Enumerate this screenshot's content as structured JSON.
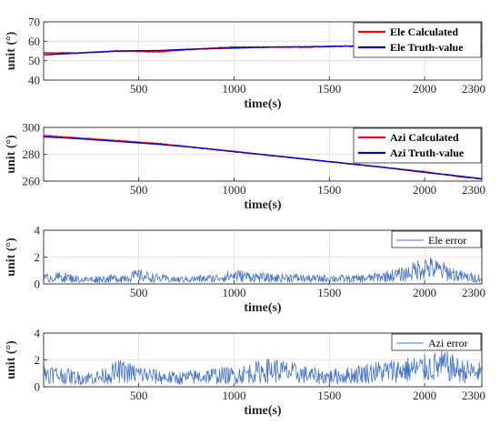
{
  "chart_data": [
    {
      "type": "line",
      "xlabel": "time(s)",
      "ylabel": "unit (°)",
      "xlim": [
        1,
        2300
      ],
      "ylim": [
        40,
        70
      ],
      "xticks": [
        500,
        1000,
        1500,
        2000,
        2300
      ],
      "yticks": [
        40,
        50,
        60,
        70
      ],
      "grid": true,
      "legend": "top-right",
      "series": [
        {
          "name": "Ele Calculated",
          "color": "#ff0000",
          "x": [
            1,
            200,
            400,
            600,
            800,
            1000,
            1200,
            1400,
            1600,
            1800,
            2000,
            2200,
            2300
          ],
          "values": [
            54,
            54,
            55,
            54.5,
            56,
            57,
            57,
            57,
            57.5,
            57,
            56.5,
            56.5,
            57
          ]
        },
        {
          "name": "Ele Truth-value",
          "color": "#0000cc",
          "x": [
            1,
            200,
            400,
            600,
            800,
            1000,
            1200,
            1400,
            1600,
            1800,
            2000,
            2200,
            2300
          ],
          "values": [
            53,
            54,
            55,
            55.2,
            56,
            56.5,
            57,
            57.2,
            57.5,
            57.5,
            57.5,
            57.3,
            57.2
          ]
        }
      ]
    },
    {
      "type": "line",
      "xlabel": "time(s)",
      "ylabel": "unit (°)",
      "xlim": [
        1,
        2300
      ],
      "ylim": [
        260,
        300
      ],
      "xticks": [
        500,
        1000,
        1500,
        2000,
        2300
      ],
      "yticks": [
        260,
        280,
        300
      ],
      "grid": true,
      "legend": "top-right",
      "series": [
        {
          "name": "Azi Calculated",
          "color": "#ff0000",
          "x": [
            1,
            200,
            400,
            600,
            800,
            1000,
            1200,
            1400,
            1600,
            1800,
            2000,
            2200,
            2300
          ],
          "values": [
            294,
            292,
            290,
            288,
            285,
            282,
            279,
            276,
            273,
            270,
            267,
            263,
            262
          ]
        },
        {
          "name": "Azi Truth-value",
          "color": "#0000cc",
          "x": [
            1,
            200,
            400,
            600,
            800,
            1000,
            1200,
            1400,
            1600,
            1800,
            2000,
            2200,
            2300
          ],
          "values": [
            293,
            291.5,
            289.5,
            287.5,
            285,
            282,
            279,
            276,
            273,
            270,
            266.5,
            263.5,
            261.5
          ]
        }
      ]
    },
    {
      "type": "line",
      "xlabel": "time(s)",
      "ylabel": "unit (°)",
      "xlim": [
        1,
        2300
      ],
      "ylim": [
        0,
        4
      ],
      "xticks": [
        500,
        1000,
        1500,
        2000,
        2300
      ],
      "yticks": [
        0,
        2,
        4
      ],
      "grid": true,
      "legend": "top-right",
      "series": [
        {
          "name": "Ele error",
          "color": "#4472c4",
          "x": [
            1,
            100,
            200,
            300,
            400,
            500,
            600,
            700,
            800,
            900,
            1000,
            1100,
            1200,
            1300,
            1400,
            1500,
            1600,
            1700,
            1800,
            1900,
            2000,
            2100,
            2200,
            2300
          ],
          "values": [
            0.4,
            0.5,
            0.3,
            0.35,
            0.4,
            0.6,
            0.4,
            0.3,
            0.35,
            0.4,
            0.6,
            0.5,
            0.4,
            0.45,
            0.35,
            0.4,
            0.35,
            0.4,
            0.55,
            0.7,
            1.2,
            0.9,
            0.5,
            0.4
          ]
        }
      ]
    },
    {
      "type": "line",
      "xlabel": "time(s)",
      "ylabel": "unit (°)",
      "xlim": [
        1,
        2300
      ],
      "ylim": [
        0,
        4
      ],
      "xticks": [
        500,
        1000,
        1500,
        2000,
        2300
      ],
      "yticks": [
        0,
        2,
        4
      ],
      "grid": true,
      "legend": "top-right",
      "series": [
        {
          "name": "Azi error",
          "color": "#4472c4",
          "x": [
            1,
            100,
            200,
            300,
            400,
            500,
            600,
            700,
            800,
            900,
            1000,
            1100,
            1200,
            1300,
            1400,
            1500,
            1600,
            1700,
            1800,
            1900,
            2000,
            2100,
            2200,
            2300
          ],
          "values": [
            1.0,
            0.8,
            0.6,
            0.7,
            1.1,
            0.9,
            0.7,
            0.6,
            0.7,
            0.8,
            0.8,
            1.0,
            1.2,
            1.0,
            0.8,
            0.7,
            0.8,
            1.0,
            1.1,
            1.2,
            1.3,
            1.5,
            1.1,
            1.0
          ]
        }
      ]
    }
  ]
}
